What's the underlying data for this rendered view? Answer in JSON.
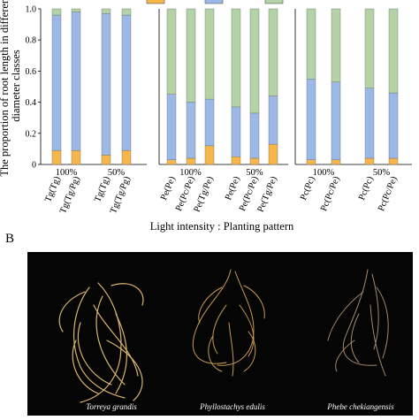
{
  "chart_data": {
    "type": "bar",
    "stacked": true,
    "ylabel": "The proportion of root length in different diameter classes",
    "xlabel": "Light intensity : Planting pattern",
    "ylim": [
      0,
      1
    ],
    "yticks": [
      "0",
      "0.2",
      "0.4",
      "0.6",
      "0.8",
      "1.0"
    ],
    "legend_position": "top",
    "colors": [
      "#f6b64a",
      "#9cb8e6",
      "#b3d3a6"
    ],
    "groups": [
      {
        "light_labels": [
          "100%",
          "50%"
        ],
        "categories": [
          "Tg(Tg)",
          "Tg(Tg/Pg)",
          "Tg(Tg)",
          "Tg(Tg/Pg)"
        ],
        "series": [
          {
            "values": [
              0.09,
              0.09,
              0.06,
              0.09
            ]
          },
          {
            "values": [
              0.87,
              0.89,
              0.91,
              0.87
            ]
          },
          {
            "values": [
              0.04,
              0.02,
              0.03,
              0.04
            ]
          }
        ]
      },
      {
        "light_labels": [
          "100%",
          "50%"
        ],
        "categories": [
          "Pe(Pe)",
          "Pe(Pc/Pe)",
          "Pe(Tg/Pe)",
          "Pe(Pe)",
          "Pe(Pc/Pe)",
          "Pe(Tg/Pe)"
        ],
        "series": [
          {
            "values": [
              0.03,
              0.04,
              0.12,
              0.05,
              0.04,
              0.13
            ]
          },
          {
            "values": [
              0.42,
              0.36,
              0.3,
              0.32,
              0.29,
              0.31
            ]
          },
          {
            "values": [
              0.55,
              0.6,
              0.58,
              0.63,
              0.67,
              0.56
            ]
          }
        ]
      },
      {
        "light_labels": [
          "100%",
          "50%"
        ],
        "categories": [
          "Pc(Pc)",
          "Pc(Pc/Pe)",
          "Pc(Pc)",
          "Pc(Pc/Pe)"
        ],
        "series": [
          {
            "values": [
              0.03,
              0.03,
              0.04,
              0.04
            ]
          },
          {
            "values": [
              0.52,
              0.5,
              0.45,
              0.42
            ]
          },
          {
            "values": [
              0.45,
              0.47,
              0.51,
              0.54
            ]
          }
        ]
      }
    ]
  },
  "panel_b": {
    "label": "B",
    "species": [
      "Torreya grandis",
      "Phyllostachys edulis",
      "Phebe chekiangensis"
    ]
  }
}
